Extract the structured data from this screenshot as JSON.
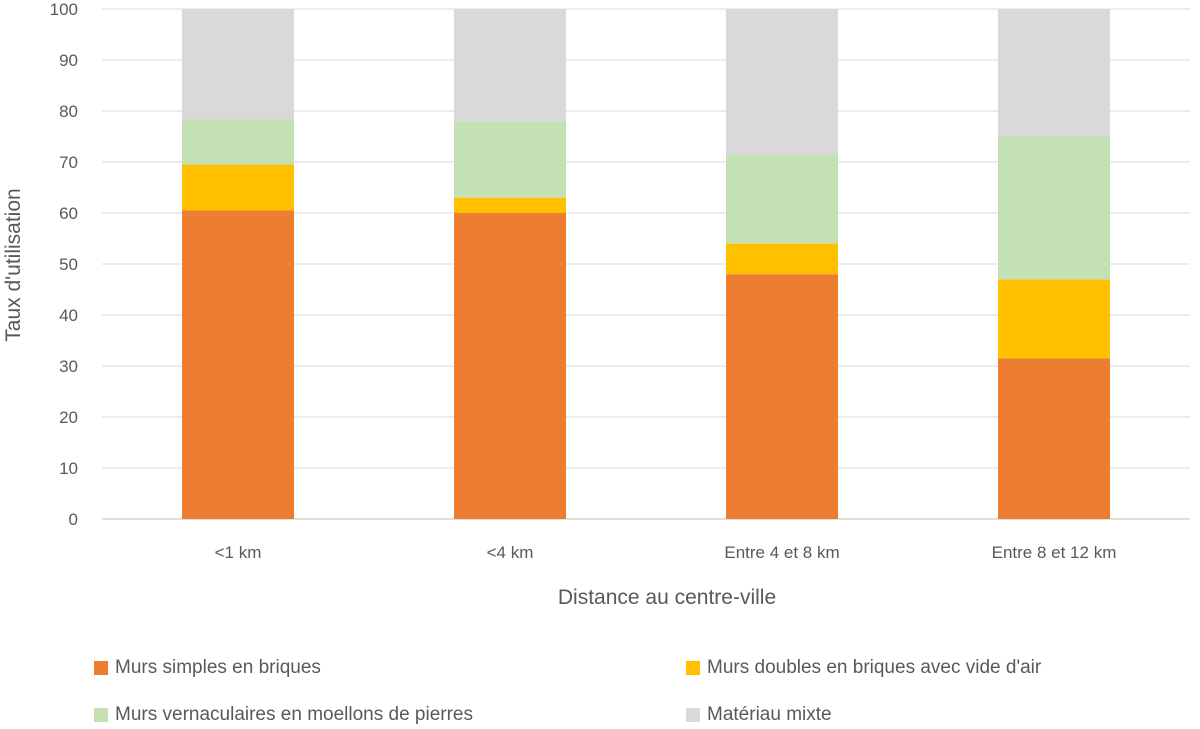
{
  "chart_data": {
    "type": "bar",
    "stacked": true,
    "title": "",
    "xlabel": "Distance au centre-ville",
    "ylabel": "Taux d'utilisation",
    "ylim": [
      0,
      100
    ],
    "yticks": [
      0,
      10,
      20,
      30,
      40,
      50,
      60,
      70,
      80,
      90,
      100
    ],
    "grid": true,
    "legend_position": "bottom",
    "categories": [
      "<1 km",
      "<4 km",
      "Entre 4 et 8 km",
      "Entre 8 et 12 km"
    ],
    "series": [
      {
        "name": "Murs simples en briques",
        "color": "#ED7D31",
        "values": [
          60.5,
          60,
          48,
          31.5
        ]
      },
      {
        "name": "Murs doubles en briques avec vide d'air",
        "color": "#FFC000",
        "values": [
          9,
          3,
          6,
          15.5
        ]
      },
      {
        "name": "Murs vernaculaires en moellons de pierres",
        "color": "#C5E0B4",
        "values": [
          9,
          15,
          17.5,
          28
        ]
      },
      {
        "name": "Matériau mixte",
        "color": "#D9D9D9",
        "values": [
          21.5,
          22,
          28.5,
          25
        ]
      }
    ]
  }
}
